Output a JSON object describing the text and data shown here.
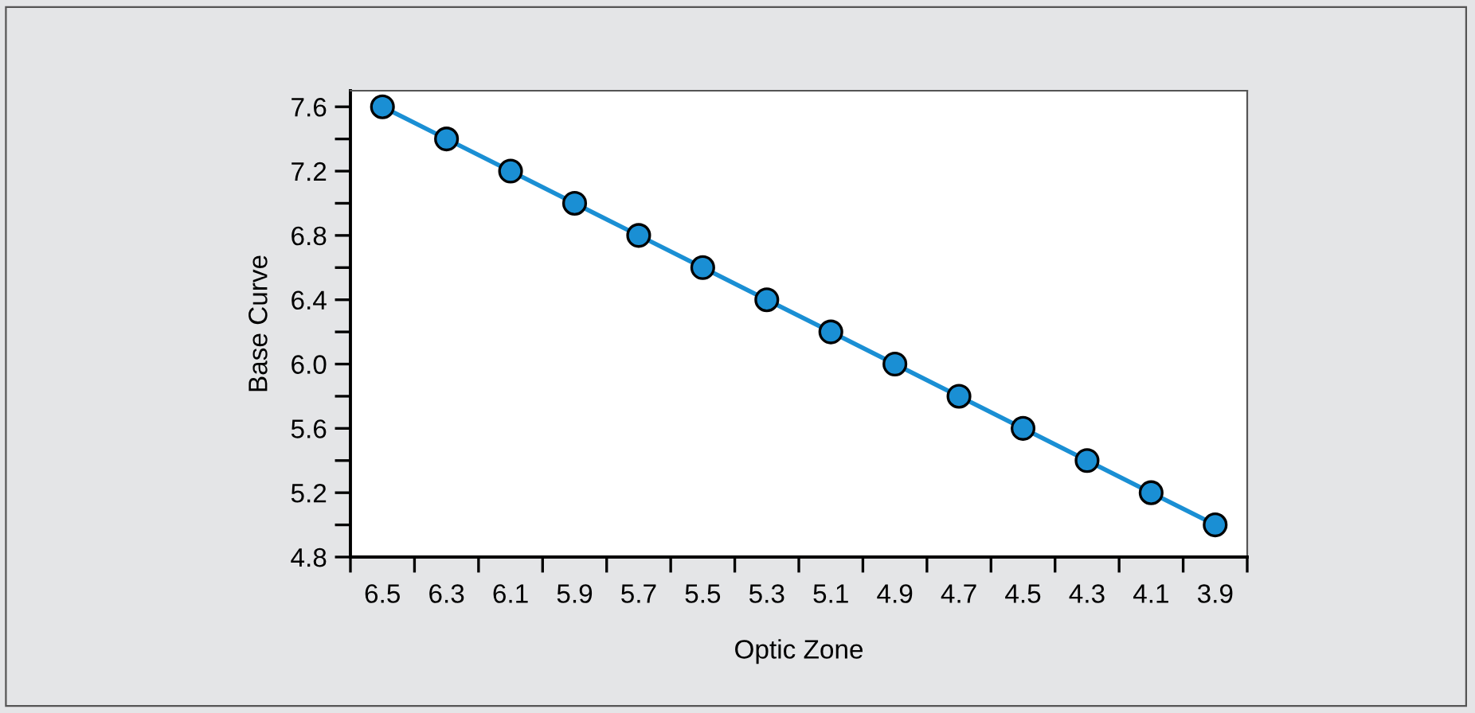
{
  "chart_data": {
    "type": "line",
    "xlabel": "Optic Zone",
    "ylabel": "Base Curve",
    "categories": [
      "6.5",
      "6.3",
      "6.1",
      "5.9",
      "5.7",
      "5.5",
      "5.3",
      "5.1",
      "4.9",
      "4.7",
      "4.5",
      "4.3",
      "4.1",
      "3.9"
    ],
    "series": [
      {
        "color": "#1a8fd4",
        "values": [
          7.6,
          7.4,
          7.2,
          7.0,
          6.8,
          6.6,
          6.4,
          6.2,
          6.0,
          5.8,
          5.6,
          5.4,
          5.2,
          5.0
        ]
      }
    ],
    "ylim": [
      4.8,
      7.7
    ],
    "yticks": [
      4.8,
      {
        "value": 5.0,
        "label": null
      },
      5.2,
      {
        "value": 5.4,
        "label": null
      },
      5.6,
      {
        "value": 5.8,
        "label": null
      },
      "6.0",
      {
        "value": 6.2,
        "label": null
      },
      6.4,
      {
        "value": 6.6,
        "label": null
      },
      6.8,
      {
        "value": 7.0,
        "label": null
      },
      7.2,
      {
        "value": 7.4,
        "label": null
      },
      7.6
    ],
    "marker": "circle",
    "line_style": "solid",
    "grid": false,
    "legend": false
  }
}
